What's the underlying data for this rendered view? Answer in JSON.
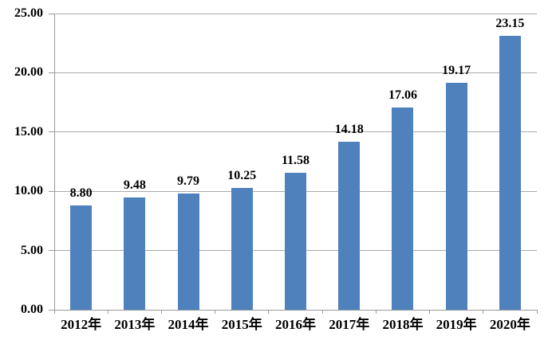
{
  "chart_data": {
    "type": "bar",
    "title": "",
    "xlabel": "",
    "ylabel": "",
    "categories": [
      "2012年",
      "2013年",
      "2014年",
      "2015年",
      "2016年",
      "2017年",
      "2018年",
      "2019年",
      "2020年"
    ],
    "values": [
      8.8,
      9.48,
      9.79,
      10.25,
      11.58,
      14.18,
      17.06,
      19.17,
      23.15
    ],
    "value_labels": [
      "8.80",
      "9.48",
      "9.79",
      "10.25",
      "11.58",
      "14.18",
      "17.06",
      "19.17",
      "23.15"
    ],
    "ylim": [
      0,
      25
    ],
    "ytick_interval": 5,
    "ytick_labels": [
      "0.00",
      "5.00",
      "10.00",
      "15.00",
      "20.00",
      "25.00"
    ],
    "grid": true,
    "legend_position": "none",
    "colors": {
      "bar": "#4F81BD",
      "gridline": "#ABABAB",
      "axis": "#9A9A9A",
      "text": "#000000",
      "background": "#FFFFFF"
    }
  }
}
